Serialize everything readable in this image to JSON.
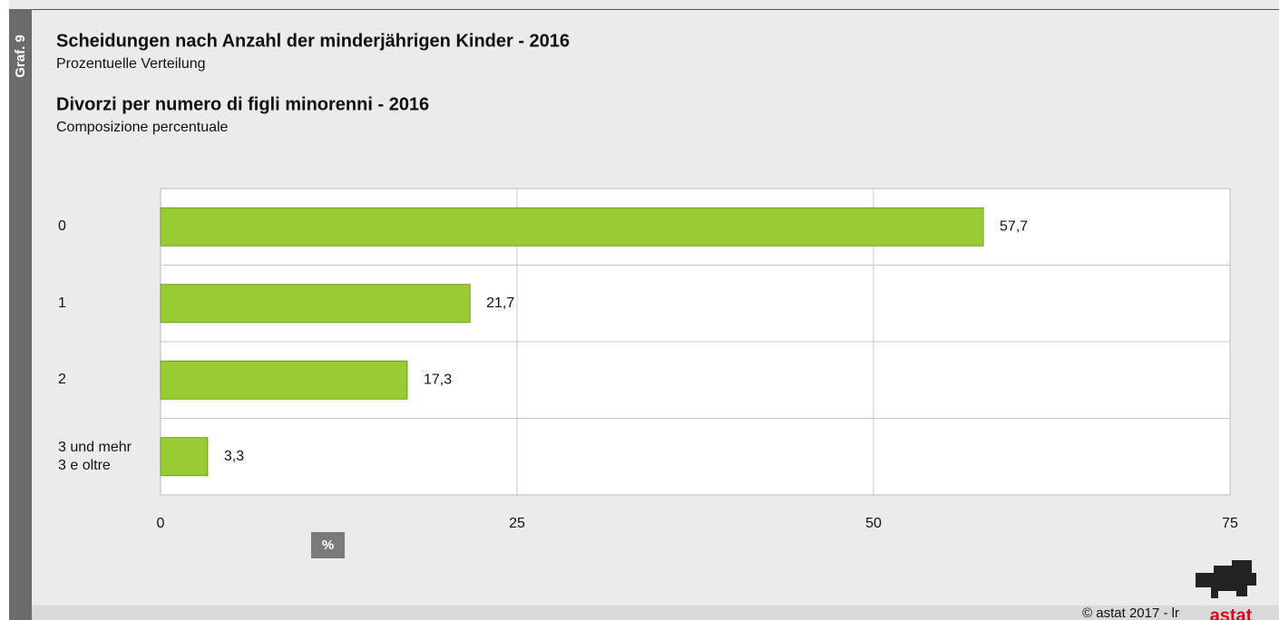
{
  "chart_data": {
    "type": "hbar",
    "side_label": "Graf. 9",
    "title": "Scheidungen nach Anzahl der minderjährigen Kinder - 2016",
    "subtitle": "Prozentuelle Verteilung",
    "title_it": "Divorzi per numero di figli minorenni - 2016",
    "subtitle_it": "Composizione percentuale",
    "categories": [
      "0",
      "1",
      "2",
      "3 und mehr\n3 e oltre"
    ],
    "values": [
      57.7,
      21.7,
      17.3,
      3.3
    ],
    "value_labels": [
      "57,7",
      "21,7",
      "17,3",
      "3,3"
    ],
    "color": "#99cc33",
    "xlim": [
      0,
      75
    ],
    "xticks": [
      0,
      25,
      50,
      75
    ],
    "grid": true,
    "x_label": "%",
    "footer": "© astat 2017 - lr",
    "logo_text": "astat"
  }
}
